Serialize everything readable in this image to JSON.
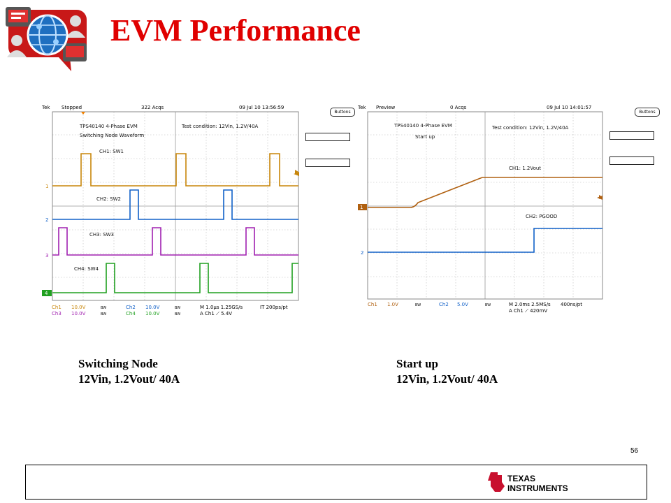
{
  "slide": {
    "title": "EVM Performance",
    "page_number": "56",
    "brand": "Texas Instruments",
    "brand_line1": "TEXAS",
    "brand_line2": "INSTRUMENTS"
  },
  "scope_left": {
    "header": {
      "brand": "Tek",
      "state": "Stopped",
      "acqs": "322 Acqs",
      "datetime": "09 Jul 10 13:56:59"
    },
    "notes": {
      "line1": "TPS40140 4-Phase EVM",
      "line2": "Switching Node Waveform",
      "condition": "Test condition: 12Vin, 1.2V/40A"
    },
    "channel_labels": {
      "ch1": "CH1: SW1",
      "ch2": "CH2: SW2",
      "ch3": "CH3: SW3",
      "ch4": "CH4: SW4"
    },
    "markers": {
      "m1": "1",
      "m2": "2",
      "m3": "3",
      "m4": "4"
    },
    "footer": {
      "ch1": "Ch1",
      "ch1_scale": "10.0V",
      "ch2": "Ch2",
      "ch2_scale": "10.0V",
      "ch3": "Ch3",
      "ch3_scale": "10.0V",
      "ch4": "Ch4",
      "ch4_scale": "10.0V",
      "bw": "BW",
      "timebase": "M 1.0µs 1.25GS/s",
      "resolution": "IT 200ps/pt",
      "trigger": "A Ch1 ⟋ 5.4V"
    },
    "buttons_label": "Buttons",
    "colors": {
      "ch1": "#c8860a",
      "ch2": "#1060c8",
      "ch3": "#a020b0",
      "ch4": "#20a020"
    }
  },
  "scope_right": {
    "header": {
      "brand": "Tek",
      "state": "Preview",
      "acqs": "0 Acqs",
      "datetime": "09 Jul 10 14:01:57"
    },
    "notes": {
      "line1": "TPS40140 4-Phase EVM",
      "line2": "Start up",
      "condition": "Test condition: 12Vin, 1.2V/40A"
    },
    "channel_labels": {
      "ch1": "CH1: 1.2Vout",
      "ch2": "CH2: PGOOD"
    },
    "markers": {
      "m1": "1",
      "m2": "2"
    },
    "footer": {
      "ch1": "Ch1",
      "ch1_scale": "1.0V",
      "ch2": "Ch2",
      "ch2_scale": "5.0V",
      "bw": "BW",
      "timebase": "M 2.0ms 2.5MS/s",
      "resolution": "400ns/pt",
      "trigger": "A Ch1 ⟋ 420mV"
    },
    "buttons_label": "Buttons",
    "colors": {
      "ch1": "#b06010",
      "ch2": "#1060c8"
    }
  },
  "captions": {
    "left_line1": "Switching Node",
    "left_line2": "12Vin, 1.2Vout/ 40A",
    "right_line1": "Start up",
    "right_line2": "12Vin, 1.2Vout/ 40A"
  }
}
